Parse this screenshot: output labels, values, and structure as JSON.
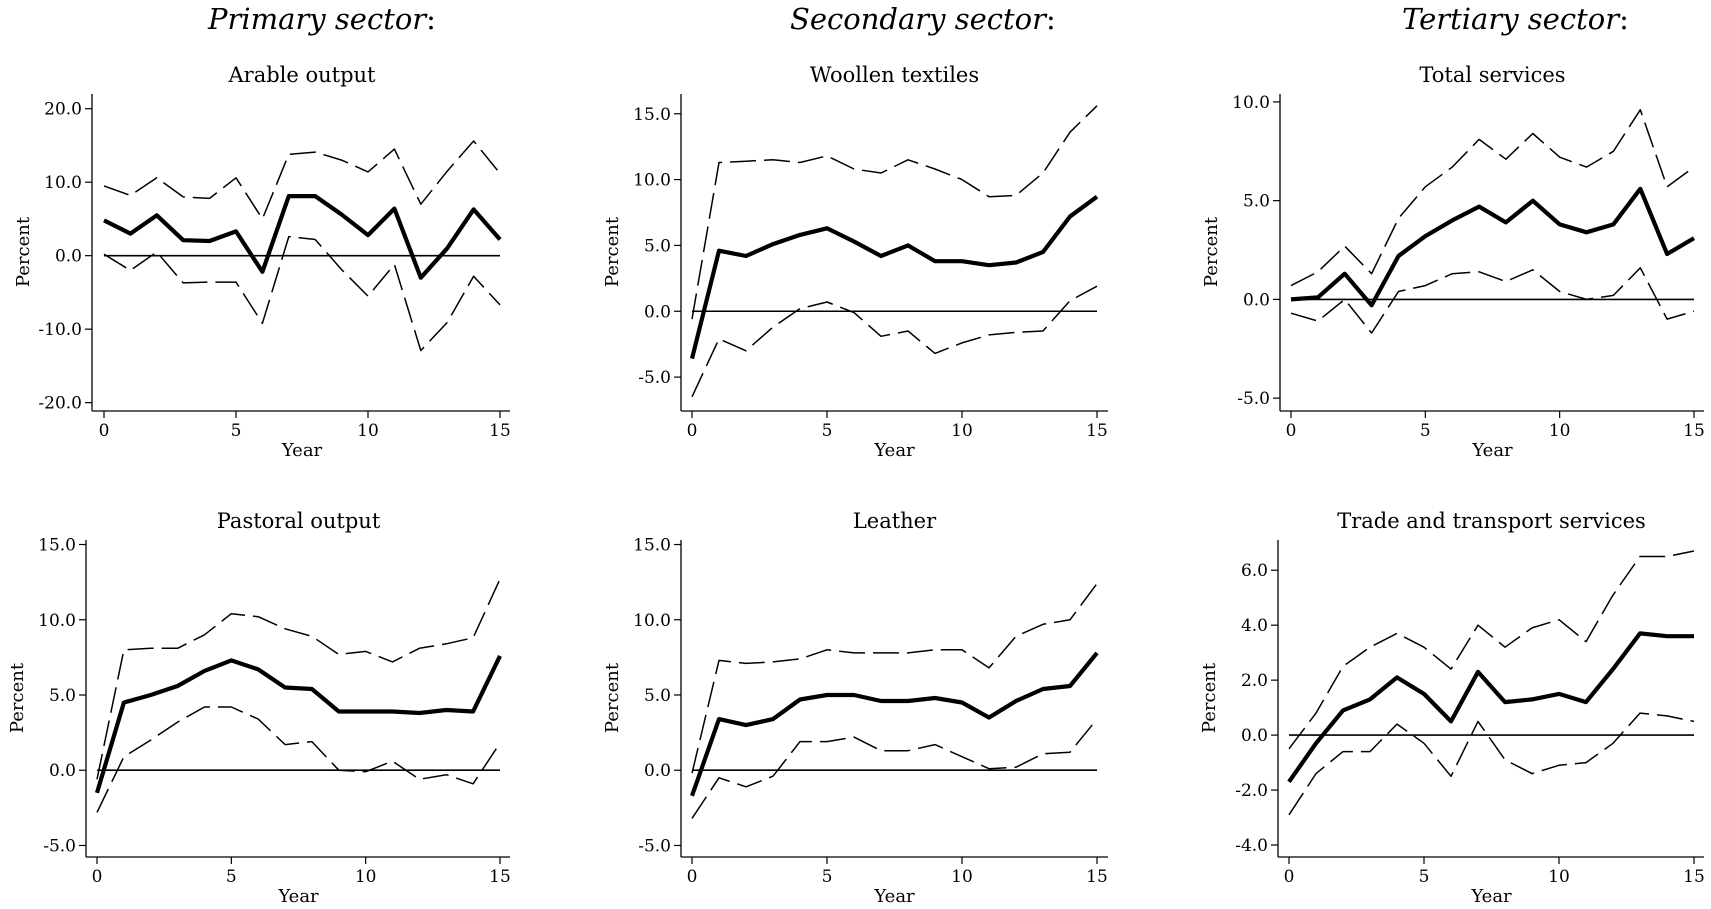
{
  "sectors": {
    "primary": "Primary sector",
    "secondary": "Secondary sector",
    "tertiary": "Tertiary sector",
    "colon": ":"
  },
  "chart_data": [
    {
      "type": "line",
      "title": "Arable output",
      "xlabel": "Year",
      "ylabel": "Percent",
      "x": [
        0,
        1,
        2,
        3,
        4,
        5,
        6,
        7,
        8,
        9,
        10,
        11,
        12,
        13,
        14,
        15
      ],
      "xticks": [
        0,
        5,
        10,
        15
      ],
      "xlim": [
        0,
        15
      ],
      "yticks": [
        -20,
        -10,
        0,
        10,
        20
      ],
      "ytick_labels": [
        "-20.0",
        "-10.0",
        "0.0",
        "10.0",
        "20.0"
      ],
      "ylim": [
        -21,
        22
      ],
      "zero_line": true,
      "grid": false,
      "legend": "none",
      "series": [
        {
          "values": [
            9.5,
            8.2,
            10.6,
            8.0,
            7.8,
            10.6,
            5.0,
            13.8,
            14.1,
            13.0,
            11.4,
            14.5,
            7.0,
            11.5,
            15.6,
            11.2
          ],
          "style": "dashed"
        },
        {
          "values": [
            4.8,
            3.0,
            5.5,
            2.1,
            2.0,
            3.3,
            -2.2,
            8.1,
            8.1,
            5.6,
            2.8,
            6.4,
            -3.0,
            1.0,
            6.3,
            2.2
          ],
          "style": "solid-thick"
        },
        {
          "values": [
            0.2,
            -2.0,
            0.5,
            -3.7,
            -3.6,
            -3.6,
            -9.2,
            2.6,
            2.2,
            -1.9,
            -5.5,
            -1.2,
            -12.9,
            -9.1,
            -2.8,
            -6.7
          ],
          "style": "dashed"
        }
      ]
    },
    {
      "type": "line",
      "title": "Woollen textiles",
      "xlabel": "Year",
      "ylabel": "Percent",
      "x": [
        0,
        1,
        2,
        3,
        4,
        5,
        6,
        7,
        8,
        9,
        10,
        11,
        12,
        13,
        14,
        15
      ],
      "xticks": [
        0,
        5,
        10,
        15
      ],
      "xlim": [
        0,
        15
      ],
      "yticks": [
        -5,
        0,
        5,
        10,
        15
      ],
      "ytick_labels": [
        "-5.0",
        "0.0",
        "5.0",
        "10.0",
        "15.0"
      ],
      "ylim": [
        -7.5,
        16.5
      ],
      "zero_line": true,
      "grid": false,
      "legend": "none",
      "series": [
        {
          "values": [
            -0.6,
            11.3,
            11.4,
            11.5,
            11.3,
            11.8,
            10.8,
            10.5,
            11.5,
            10.8,
            10.0,
            8.7,
            8.8,
            10.5,
            13.6,
            15.6
          ],
          "style": "dashed"
        },
        {
          "values": [
            -3.6,
            4.6,
            4.2,
            5.1,
            5.8,
            6.3,
            5.3,
            4.2,
            5.0,
            3.8,
            3.8,
            3.5,
            3.7,
            4.5,
            7.2,
            8.7
          ],
          "style": "solid-thick"
        },
        {
          "values": [
            -6.5,
            -2.1,
            -3.0,
            -1.2,
            0.2,
            0.7,
            -0.1,
            -1.9,
            -1.5,
            -3.2,
            -2.4,
            -1.8,
            -1.6,
            -1.5,
            0.8,
            1.9
          ],
          "style": "dashed"
        }
      ]
    },
    {
      "type": "line",
      "title": "Total services",
      "xlabel": "Year",
      "ylabel": "Percent",
      "x": [
        0,
        1,
        2,
        3,
        4,
        5,
        6,
        7,
        8,
        9,
        10,
        11,
        12,
        13,
        14,
        15
      ],
      "xticks": [
        0,
        5,
        10,
        15
      ],
      "xlim": [
        0,
        15
      ],
      "yticks": [
        -5,
        0,
        5,
        10
      ],
      "ytick_labels": [
        "-5.0",
        "0.0",
        "5.0",
        "10.0"
      ],
      "ylim": [
        -5.6,
        10.4
      ],
      "zero_line": true,
      "grid": false,
      "legend": "none",
      "series": [
        {
          "values": [
            0.7,
            1.4,
            2.7,
            1.3,
            4.1,
            5.7,
            6.7,
            8.1,
            7.1,
            8.4,
            7.2,
            6.7,
            7.5,
            9.6,
            5.7,
            6.7
          ],
          "style": "dashed"
        },
        {
          "values": [
            0.0,
            0.1,
            1.3,
            -0.3,
            2.2,
            3.2,
            4.0,
            4.7,
            3.9,
            5.0,
            3.8,
            3.4,
            3.8,
            5.6,
            2.3,
            3.1
          ],
          "style": "solid-thick"
        },
        {
          "values": [
            -0.7,
            -1.1,
            0.0,
            -1.7,
            0.4,
            0.7,
            1.3,
            1.4,
            0.9,
            1.5,
            0.4,
            0.0,
            0.2,
            1.6,
            -1.0,
            -0.6
          ],
          "style": "dashed"
        }
      ]
    },
    {
      "type": "line",
      "title": "Pastoral output",
      "xlabel": "Year",
      "ylabel": "Percent",
      "x": [
        0,
        1,
        2,
        3,
        4,
        5,
        6,
        7,
        8,
        9,
        10,
        11,
        12,
        13,
        14,
        15
      ],
      "xticks": [
        0,
        5,
        10,
        15
      ],
      "xlim": [
        0,
        15
      ],
      "yticks": [
        -5,
        0,
        5,
        10,
        15
      ],
      "ytick_labels": [
        "-5.0",
        "0.0",
        "5.0",
        "10.0",
        "15.0"
      ],
      "ylim": [
        -5.7,
        15.3
      ],
      "zero_line": true,
      "grid": false,
      "legend": "none",
      "series": [
        {
          "values": [
            -0.6,
            8.0,
            8.1,
            8.1,
            9.0,
            10.4,
            10.2,
            9.4,
            8.9,
            7.7,
            7.9,
            7.2,
            8.1,
            8.4,
            8.8,
            12.7
          ],
          "style": "dashed"
        },
        {
          "values": [
            -1.5,
            4.5,
            5.0,
            5.6,
            6.6,
            7.3,
            6.7,
            5.5,
            5.4,
            3.9,
            3.9,
            3.9,
            3.8,
            4.0,
            3.9,
            7.6
          ],
          "style": "solid-thick"
        },
        {
          "values": [
            -2.8,
            0.9,
            2.0,
            3.2,
            4.2,
            4.2,
            3.4,
            1.7,
            1.9,
            0.0,
            -0.1,
            0.6,
            -0.6,
            -0.3,
            -0.9,
            1.8
          ],
          "style": "dashed"
        }
      ]
    },
    {
      "type": "line",
      "title": "Leather",
      "xlabel": "Year",
      "ylabel": "Percent",
      "x": [
        0,
        1,
        2,
        3,
        4,
        5,
        6,
        7,
        8,
        9,
        10,
        11,
        12,
        13,
        14,
        15
      ],
      "xticks": [
        0,
        5,
        10,
        15
      ],
      "xlim": [
        0,
        15
      ],
      "yticks": [
        -5,
        0,
        5,
        10,
        15
      ],
      "ytick_labels": [
        "-5.0",
        "0.0",
        "5.0",
        "10.0",
        "15.0"
      ],
      "ylim": [
        -5.7,
        15.3
      ],
      "zero_line": true,
      "grid": false,
      "legend": "none",
      "series": [
        {
          "values": [
            -0.2,
            7.3,
            7.1,
            7.2,
            7.4,
            8.0,
            7.8,
            7.8,
            7.8,
            8.0,
            8.0,
            6.8,
            8.9,
            9.7,
            10.0,
            12.4
          ],
          "style": "dashed"
        },
        {
          "values": [
            -1.7,
            3.4,
            3.0,
            3.4,
            4.7,
            5.0,
            5.0,
            4.6,
            4.6,
            4.8,
            4.5,
            3.5,
            4.6,
            5.4,
            5.6,
            7.8
          ],
          "style": "solid-thick"
        },
        {
          "values": [
            -3.2,
            -0.5,
            -1.1,
            -0.4,
            1.9,
            1.9,
            2.2,
            1.3,
            1.3,
            1.7,
            0.9,
            0.1,
            0.2,
            1.1,
            1.2,
            3.4
          ],
          "style": "dashed"
        }
      ]
    },
    {
      "type": "line",
      "title": "Trade and transport services",
      "xlabel": "Year",
      "ylabel": "Percent",
      "x": [
        0,
        1,
        2,
        3,
        4,
        5,
        6,
        7,
        8,
        9,
        10,
        11,
        12,
        13,
        14,
        15
      ],
      "xticks": [
        0,
        5,
        10,
        15
      ],
      "xlim": [
        0,
        15
      ],
      "yticks": [
        -4,
        -2,
        0,
        2,
        4,
        6
      ],
      "ytick_labels": [
        "-4.0",
        "-2.0",
        "0.0",
        "2.0",
        "4.0",
        "6.0"
      ],
      "ylim": [
        -4.4,
        7.1
      ],
      "zero_line": true,
      "grid": false,
      "legend": "none",
      "series": [
        {
          "values": [
            -0.5,
            0.8,
            2.5,
            3.2,
            3.7,
            3.2,
            2.4,
            4.0,
            3.2,
            3.9,
            4.2,
            3.4,
            5.1,
            6.5,
            6.5,
            6.7
          ],
          "style": "dashed"
        },
        {
          "values": [
            -1.7,
            -0.3,
            0.9,
            1.3,
            2.1,
            1.5,
            0.5,
            2.3,
            1.2,
            1.3,
            1.5,
            1.2,
            2.4,
            3.7,
            3.6,
            3.6
          ],
          "style": "solid-thick"
        },
        {
          "values": [
            -2.9,
            -1.4,
            -0.6,
            -0.6,
            0.4,
            -0.3,
            -1.5,
            0.5,
            -0.9,
            -1.4,
            -1.1,
            -1.0,
            -0.3,
            0.8,
            0.7,
            0.5
          ],
          "style": "dashed"
        }
      ]
    }
  ]
}
